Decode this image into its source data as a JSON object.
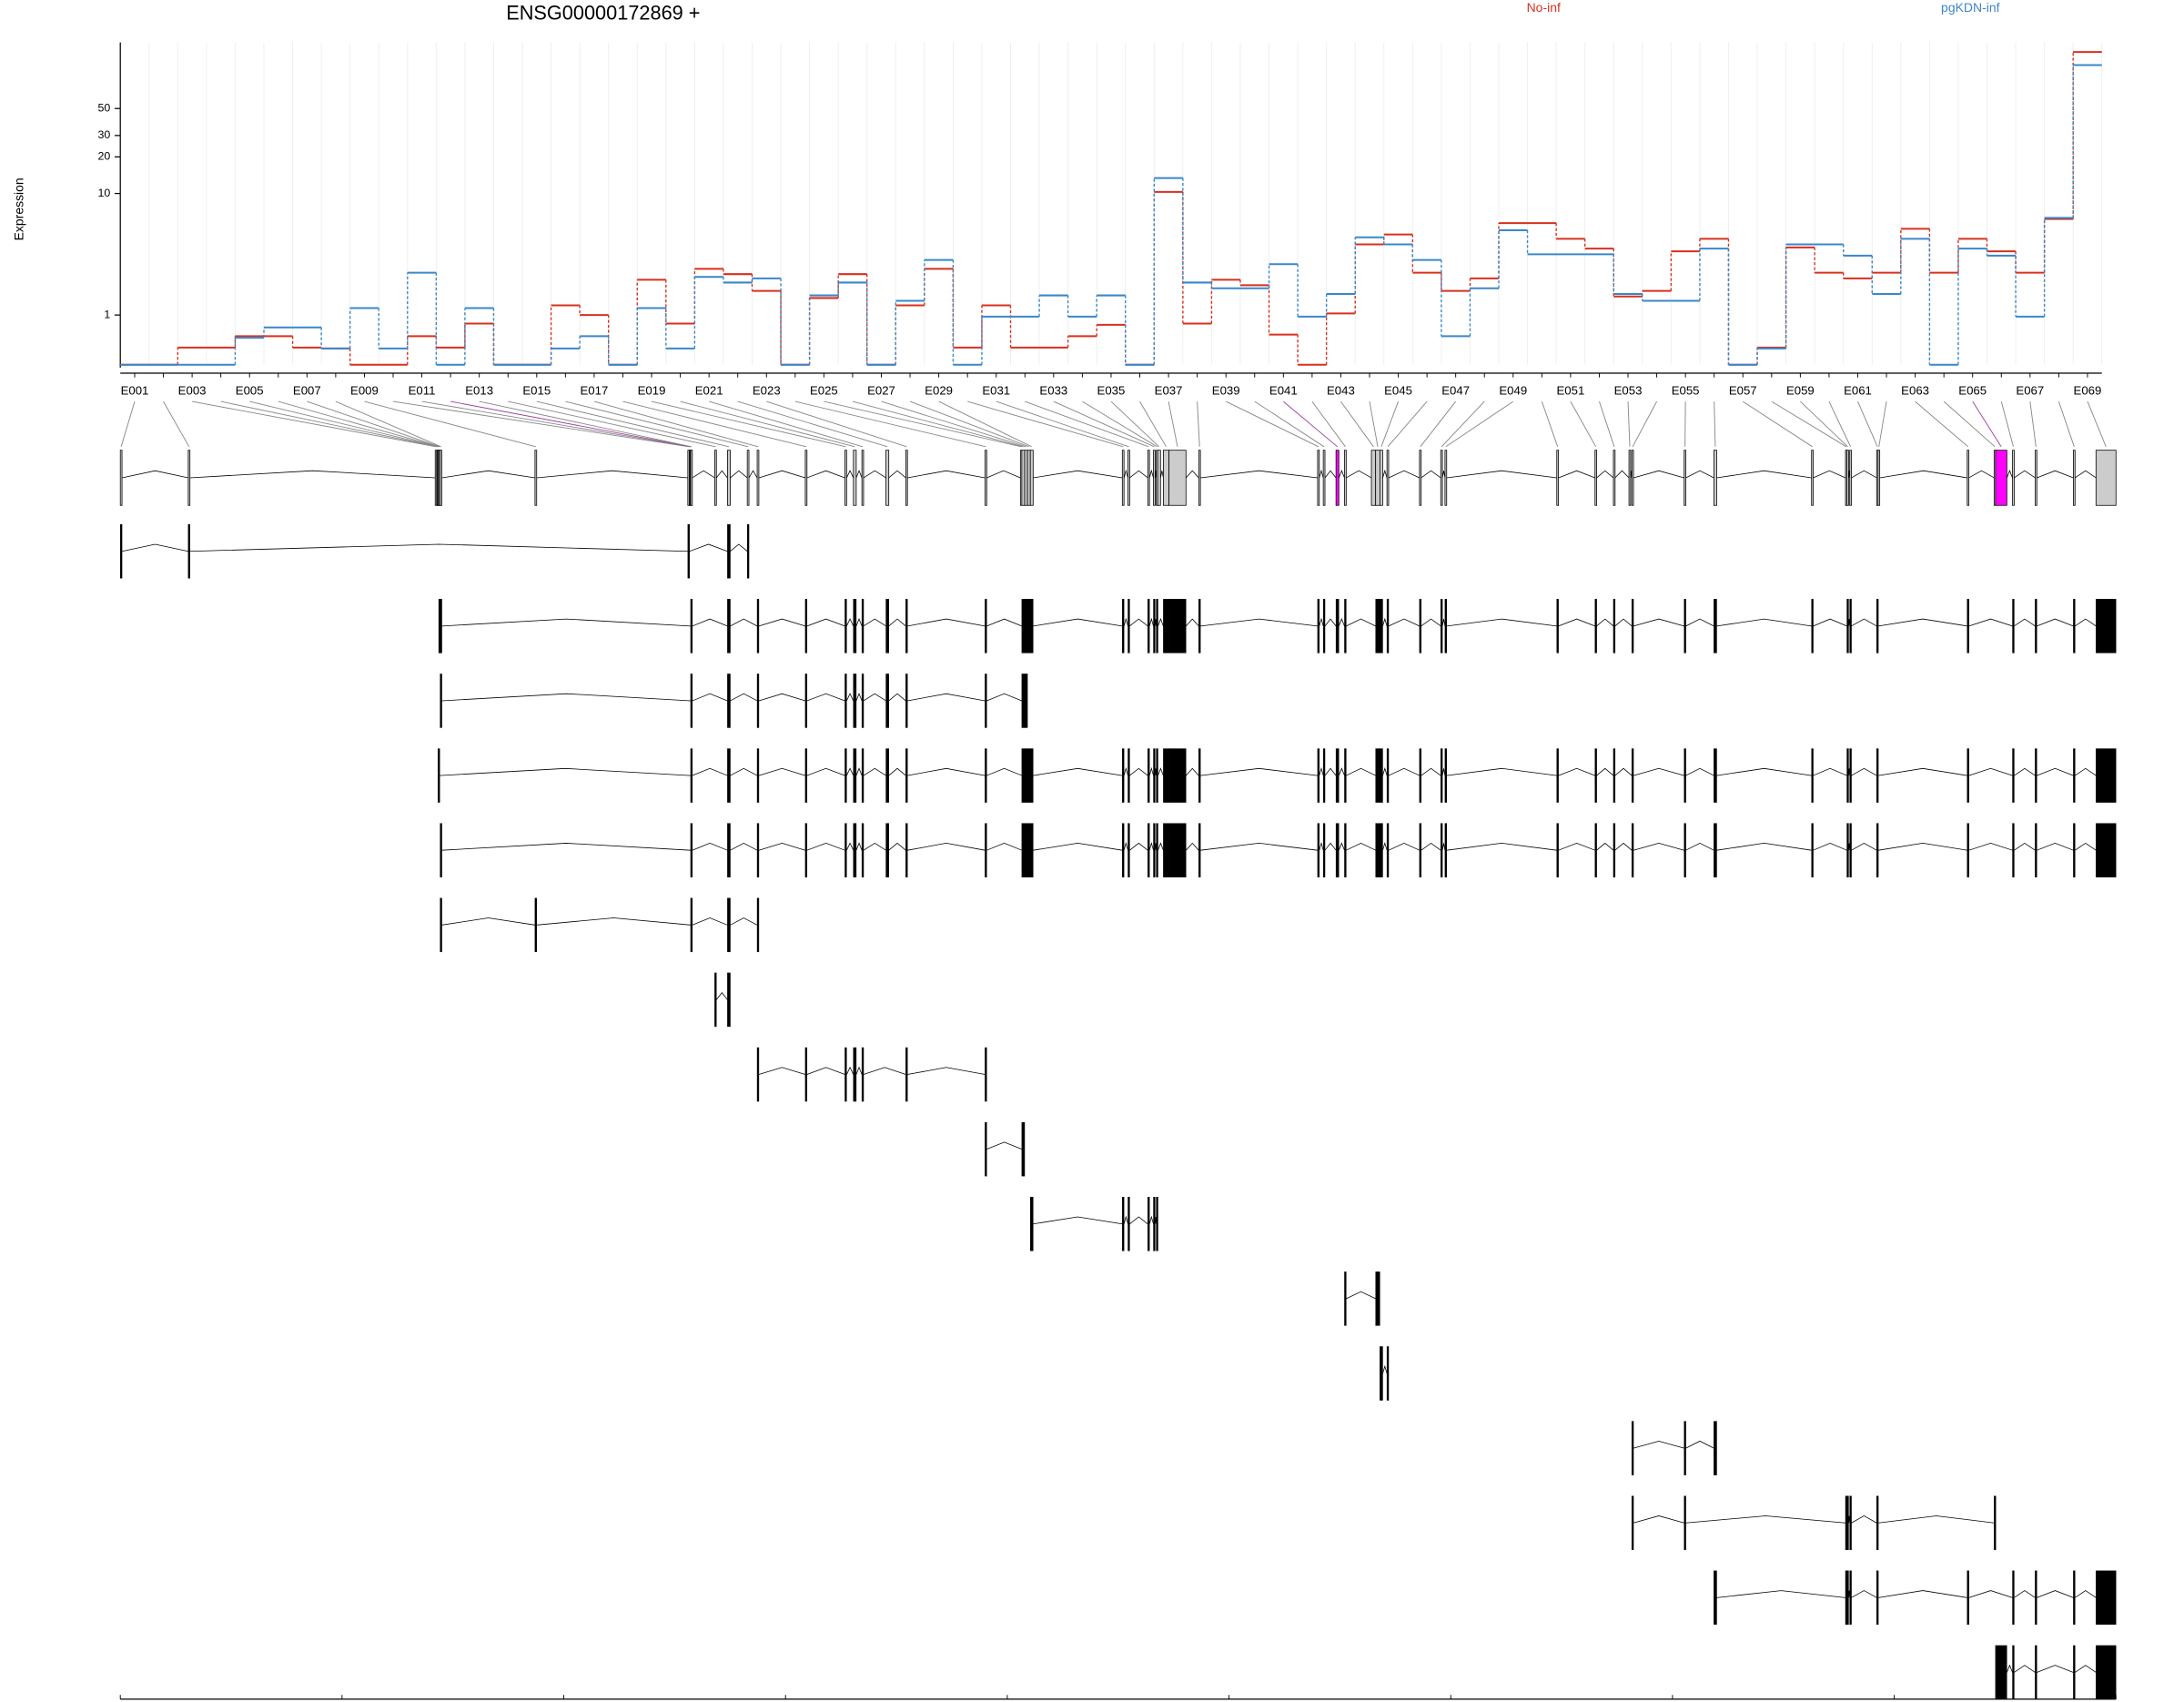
{
  "chart_data": {
    "type": "dexseq",
    "title": "ENSG00000172869 +",
    "y_label": "Expression",
    "log_y": true,
    "ylim": [
      0.39,
      175
    ],
    "yticks": [
      1,
      10,
      20,
      30,
      50
    ],
    "categories": [
      "E001",
      null,
      "E003",
      null,
      "E005",
      null,
      "E007",
      null,
      "E009",
      null,
      "E011",
      null,
      "E013",
      null,
      "E015",
      null,
      "E017",
      null,
      "E019",
      null,
      "E021",
      null,
      "E023",
      null,
      "E025",
      null,
      "E027",
      null,
      "E029",
      null,
      "E031",
      null,
      "E033",
      null,
      "E035",
      null,
      "E037",
      null,
      "E039",
      null,
      "E041",
      null,
      "E043",
      null,
      "E045",
      null,
      "E047",
      null,
      "E049",
      null,
      "E051",
      null,
      "E053",
      null,
      "E055",
      null,
      "E057",
      null,
      "E059",
      null,
      "E061",
      null,
      "E063",
      null,
      "E065",
      null,
      "E067",
      null,
      "E069"
    ],
    "series": [
      {
        "name": "No-inf",
        "color": "#d7301f",
        "values": [
          0.39,
          0.39,
          0.54,
          0.54,
          0.67,
          0.67,
          0.54,
          0.53,
          0.39,
          0.39,
          0.67,
          0.54,
          0.85,
          0.39,
          0.39,
          1.2,
          1.0,
          0.39,
          1.95,
          0.85,
          2.4,
          2.17,
          1.58,
          0.39,
          1.38,
          2.17,
          0.39,
          1.2,
          2.4,
          0.54,
          1.2,
          0.54,
          0.54,
          0.67,
          0.83,
          0.39,
          10.3,
          0.85,
          1.95,
          1.76,
          0.69,
          0.39,
          1.03,
          3.81,
          4.6,
          2.23,
          1.58,
          2.0,
          5.7,
          5.7,
          4.24,
          3.52,
          1.42,
          1.58,
          3.34,
          4.24,
          0.39,
          0.54,
          3.6,
          2.23,
          2.0,
          2.23,
          5.12,
          2.23,
          4.24,
          3.34,
          2.23,
          6.17,
          146
        ]
      },
      {
        "name": "pgKDN-inf",
        "color": "#3a87c8",
        "values": [
          0.39,
          0.39,
          0.39,
          0.39,
          0.65,
          0.79,
          0.79,
          0.53,
          1.14,
          0.53,
          2.23,
          0.39,
          1.14,
          0.39,
          0.39,
          0.53,
          0.67,
          0.39,
          1.14,
          0.53,
          2.06,
          1.85,
          2.0,
          0.39,
          1.45,
          1.85,
          0.39,
          1.31,
          2.84,
          0.39,
          0.97,
          0.97,
          1.45,
          0.97,
          1.45,
          0.39,
          13.4,
          1.85,
          1.66,
          1.66,
          2.62,
          0.97,
          1.49,
          4.36,
          3.81,
          2.84,
          0.67,
          1.66,
          4.98,
          3.16,
          3.16,
          3.16,
          1.49,
          1.31,
          1.31,
          3.52,
          0.39,
          0.53,
          3.81,
          3.81,
          3.08,
          1.49,
          4.24,
          0.39,
          3.52,
          3.08,
          0.97,
          6.3,
          114
        ]
      }
    ],
    "exons": [
      [
        119037772,
        119037922
      ],
      [
        119044972,
        119045122
      ],
      [
        119071147,
        119071297
      ],
      [
        119071297,
        119071372
      ],
      [
        119071372,
        119071447
      ],
      [
        119071447,
        119071522
      ],
      [
        119071522,
        119071672
      ],
      [
        119071672,
        119071822
      ],
      [
        119081722,
        119081872
      ],
      [
        119097922,
        119098072
      ],
      [
        119098072,
        119098147
      ],
      [
        119098147,
        119098222
      ],
      [
        119098222,
        119098372
      ],
      [
        119100772,
        119100922
      ],
      [
        119102122,
        119102422
      ],
      [
        119104222,
        119104372
      ],
      [
        119105272,
        119105422
      ],
      [
        119110372,
        119110522
      ],
      [
        119114572,
        119114722
      ],
      [
        119115472,
        119115772
      ],
      [
        119116372,
        119116522
      ],
      [
        119118922,
        119119222
      ],
      [
        119121022,
        119121172
      ],
      [
        119129422,
        119129572
      ],
      [
        119133172,
        119133322
      ],
      [
        119133322,
        119133622
      ],
      [
        119133622,
        119133922
      ],
      [
        119133922,
        119134222
      ],
      [
        119134222,
        119134522
      ],
      [
        119143972,
        119144122
      ],
      [
        119144572,
        119144722
      ],
      [
        119146672,
        119146822
      ],
      [
        119147272,
        119147422
      ],
      [
        119147572,
        119147722
      ],
      [
        119147722,
        119148022
      ],
      [
        119148322,
        119148922
      ],
      [
        119148922,
        119150722
      ],
      [
        119152072,
        119152222
      ],
      [
        119164672,
        119164822
      ],
      [
        119165272,
        119165422
      ],
      [
        119166622,
        119166922
      ],
      [
        119167522,
        119167672
      ],
      [
        119170372,
        119170822
      ],
      [
        119170822,
        119171272
      ],
      [
        119171272,
        119171572
      ],
      [
        119172022,
        119172172
      ],
      [
        119175472,
        119175622
      ],
      [
        119177722,
        119177872
      ],
      [
        119178172,
        119178322
      ],
      [
        119190022,
        119190172
      ],
      [
        119194072,
        119194222
      ],
      [
        119196022,
        119196172
      ],
      [
        119197672,
        119197822
      ],
      [
        119197972,
        119198122
      ],
      [
        119203522,
        119203672
      ],
      [
        119206672,
        119206972
      ],
      [
        119217022,
        119217172
      ],
      [
        119220622,
        119220772
      ],
      [
        119220772,
        119220922
      ],
      [
        119221072,
        119221222
      ],
      [
        119223922,
        119224072
      ],
      [
        119224072,
        119224222
      ],
      [
        119233522,
        119233672
      ],
      [
        119236372,
        119236522
      ],
      [
        119236522,
        119237722
      ],
      [
        119238322,
        119238472
      ],
      [
        119240722,
        119240872
      ],
      [
        119244772,
        119244922
      ],
      [
        119247172,
        119249291
      ]
    ],
    "highlighted": [
      11,
      40,
      64
    ],
    "highlight_color": "#ff00ff",
    "transcripts": [
      [
        0,
        1,
        9,
        14,
        15
      ],
      [
        6,
        7,
        12,
        14,
        16,
        17,
        18,
        19,
        20,
        21,
        22,
        23,
        25,
        26,
        27,
        28,
        29,
        30,
        31,
        32,
        33,
        35,
        36,
        37,
        38,
        39,
        40,
        41,
        43,
        44,
        45,
        46,
        47,
        48,
        49,
        50,
        51,
        53,
        54,
        55,
        56,
        58,
        59,
        60,
        62,
        65,
        66,
        67,
        68
      ],
      [
        7,
        12,
        14,
        16,
        17,
        18,
        19,
        20,
        21,
        22,
        23,
        25,
        26
      ],
      [
        5,
        12,
        14,
        16,
        17,
        18,
        19,
        20,
        21,
        22,
        23,
        25,
        26,
        27,
        28,
        29,
        30,
        31,
        32,
        33,
        35,
        36,
        37,
        38,
        39,
        40,
        41,
        43,
        44,
        45,
        46,
        47,
        48,
        49,
        50,
        51,
        53,
        54,
        55,
        56,
        58,
        59,
        60,
        62,
        65,
        66,
        67,
        68
      ],
      [
        7,
        12,
        14,
        16,
        17,
        18,
        19,
        20,
        21,
        22,
        23,
        25,
        26,
        27,
        28,
        29,
        30,
        31,
        32,
        33,
        35,
        36,
        37,
        38,
        39,
        40,
        41,
        43,
        44,
        45,
        46,
        47,
        48,
        49,
        50,
        51,
        53,
        54,
        55,
        56,
        58,
        59,
        60,
        62,
        65,
        66,
        67,
        68
      ],
      [
        7,
        8,
        12,
        14,
        16
      ],
      [
        13,
        14
      ],
      [
        16,
        17,
        18,
        19,
        20,
        22,
        23
      ],
      [
        23,
        25
      ],
      [
        28,
        29,
        30,
        31,
        32,
        33
      ],
      [
        41,
        43
      ],
      [
        44,
        45
      ],
      [
        53,
        54,
        55
      ],
      [
        53,
        54,
        57,
        58,
        59,
        60,
        63
      ],
      [
        55,
        57,
        58,
        59,
        60,
        62,
        65,
        66,
        67,
        68
      ],
      [
        64,
        65,
        66,
        67,
        68
      ]
    ],
    "xlim": [
      119037772,
      119249291
    ],
    "xticks": [
      119037772,
      119061274,
      119084776,
      119108278,
      119131780,
      119155283,
      119178785,
      119202287,
      119225789,
      119249291
    ]
  }
}
